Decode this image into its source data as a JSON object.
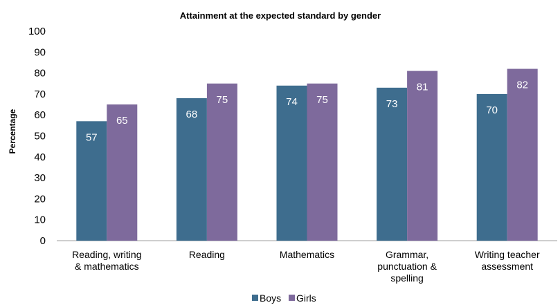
{
  "chart_data": {
    "type": "bar",
    "title": "Attainment at the expected standard by gender",
    "xlabel": "",
    "ylabel": "Percentage",
    "ylim": [
      0,
      100
    ],
    "yticks": [
      0,
      10,
      20,
      30,
      40,
      50,
      60,
      70,
      80,
      90,
      100
    ],
    "grid": false,
    "legend_position": "bottom",
    "categories": [
      [
        "Reading, writing",
        "& mathematics"
      ],
      [
        "Reading"
      ],
      [
        "Mathematics"
      ],
      [
        "Grammar,",
        "punctuation &",
        "spelling"
      ],
      [
        "Writing teacher",
        "assessment"
      ]
    ],
    "series": [
      {
        "name": "Boys",
        "color": "#3e6d8e",
        "values": [
          57,
          68,
          74,
          73,
          70
        ]
      },
      {
        "name": "Girls",
        "color": "#7e6a9c",
        "values": [
          65,
          75,
          75,
          81,
          82
        ]
      }
    ],
    "data_labels": true
  }
}
